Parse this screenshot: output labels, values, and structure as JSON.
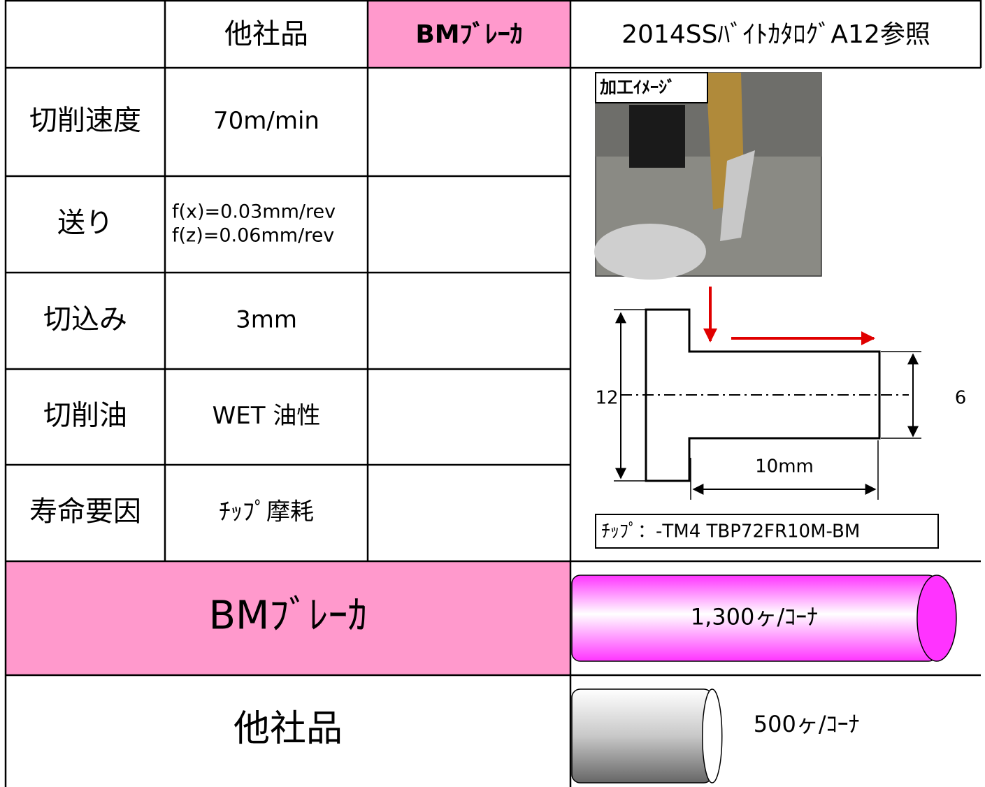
{
  "header": {
    "competitor": "他社品",
    "bm": "BMﾌﾞﾚｰｶ",
    "reference": "2014SSﾊﾞｲﾄｶﾀﾛｸﾞA12参照"
  },
  "rows": [
    {
      "label": "切削速度",
      "competitor": "70m/min"
    },
    {
      "label": "送り",
      "competitor": [
        "f(x)=0.03mm/rev",
        "f(z)=0.06mm/rev"
      ]
    },
    {
      "label": "切込み",
      "competitor": "3mm"
    },
    {
      "label": "切削油",
      "competitor": "WET 油性"
    },
    {
      "label": "寿命要因",
      "competitor": "ﾁｯﾌﾟ摩耗"
    }
  ],
  "image": {
    "label": "加工ｲﾒｰｼﾞ"
  },
  "diagram": {
    "outer_diameter": "12",
    "inner_diameter": "6",
    "length": "10mm",
    "tip": "ﾁｯﾌﾟ：-TM4 TBP72FR10M-BM"
  },
  "life": [
    {
      "name": "BMﾌﾞﾚｰｶ",
      "value": 1300,
      "label": "1,300ヶ/ｺｰﾅ",
      "color": "#ff33ff"
    },
    {
      "name": "他社品",
      "value": 500,
      "label": "500ヶ/ｺｰﾅ",
      "color": "#808080"
    }
  ]
}
